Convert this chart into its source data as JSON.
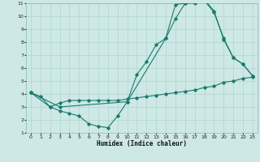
{
  "xlabel": "Humidex (Indice chaleur)",
  "xlim": [
    -0.5,
    23.5
  ],
  "ylim": [
    1,
    11
  ],
  "xticks": [
    0,
    1,
    2,
    3,
    4,
    5,
    6,
    7,
    8,
    9,
    10,
    11,
    12,
    13,
    14,
    15,
    16,
    17,
    18,
    19,
    20,
    21,
    22,
    23
  ],
  "yticks": [
    1,
    2,
    3,
    4,
    5,
    6,
    7,
    8,
    9,
    10,
    11
  ],
  "bg_color": "#cde8e5",
  "grid_color": "#aacfcc",
  "line_color": "#1a7a6e",
  "lines": [
    {
      "x": [
        0,
        1,
        2,
        3,
        4,
        5,
        6,
        7,
        8,
        9,
        10,
        11,
        12,
        13,
        14,
        15,
        16,
        17,
        18,
        19,
        20,
        21,
        22,
        23
      ],
      "y": [
        4.1,
        3.8,
        3.0,
        3.3,
        3.5,
        3.5,
        3.5,
        3.5,
        3.5,
        3.5,
        3.6,
        3.7,
        3.8,
        3.9,
        4.0,
        4.1,
        4.2,
        4.3,
        4.5,
        4.6,
        4.9,
        5.0,
        5.2,
        5.3
      ]
    },
    {
      "x": [
        0,
        2,
        3,
        4,
        5,
        6,
        7,
        8,
        9,
        10,
        11,
        12,
        13,
        14,
        15,
        16,
        17,
        18,
        19,
        20,
        21,
        22,
        23
      ],
      "y": [
        4.1,
        3.0,
        2.7,
        2.5,
        2.3,
        1.7,
        1.5,
        1.4,
        2.3,
        3.4,
        5.5,
        6.5,
        7.8,
        8.3,
        9.8,
        11.0,
        11.0,
        11.2,
        10.3,
        8.3,
        6.8,
        6.3,
        5.4
      ]
    },
    {
      "x": [
        0,
        3,
        10,
        14,
        15,
        16,
        17,
        18,
        19,
        20,
        21,
        22,
        23
      ],
      "y": [
        4.1,
        3.0,
        3.4,
        8.3,
        10.9,
        11.0,
        11.1,
        11.3,
        10.4,
        8.2,
        6.8,
        6.3,
        5.4
      ]
    }
  ]
}
